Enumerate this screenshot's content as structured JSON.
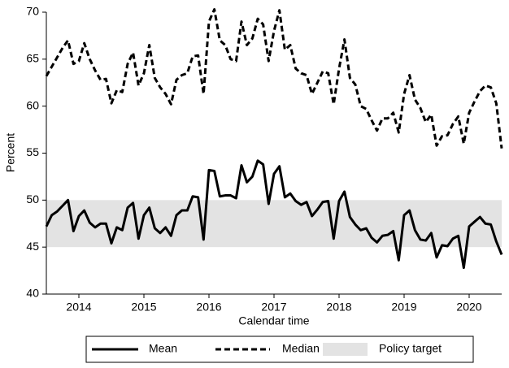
{
  "chart_data": {
    "type": "line",
    "xlabel": "Calendar time",
    "ylabel": "Percent",
    "xlim": [
      2013.5,
      2020.5
    ],
    "xticks": [
      2014,
      2015,
      2016,
      2017,
      2018,
      2019,
      2020
    ],
    "ylim": [
      40,
      70
    ],
    "yticks": [
      40,
      45,
      50,
      55,
      60,
      65,
      70
    ],
    "legend": "bottom",
    "band": {
      "name": "Policy target",
      "range": [
        45,
        50
      ],
      "color": "#e3e3e3"
    },
    "x": [
      2013.5,
      2013.583,
      2013.667,
      2013.75,
      2013.833,
      2013.917,
      2014,
      2014.083,
      2014.167,
      2014.25,
      2014.333,
      2014.417,
      2014.5,
      2014.583,
      2014.667,
      2014.75,
      2014.833,
      2014.917,
      2015,
      2015.083,
      2015.167,
      2015.25,
      2015.333,
      2015.417,
      2015.5,
      2015.583,
      2015.667,
      2015.75,
      2015.833,
      2015.917,
      2016,
      2016.083,
      2016.167,
      2016.25,
      2016.333,
      2016.417,
      2016.5,
      2016.583,
      2016.667,
      2016.75,
      2016.833,
      2016.917,
      2017,
      2017.083,
      2017.167,
      2017.25,
      2017.333,
      2017.417,
      2017.5,
      2017.583,
      2017.667,
      2017.75,
      2017.833,
      2017.917,
      2018,
      2018.083,
      2018.167,
      2018.25,
      2018.333,
      2018.417,
      2018.5,
      2018.583,
      2018.667,
      2018.75,
      2018.833,
      2018.917,
      2019,
      2019.083,
      2019.167,
      2019.25,
      2019.333,
      2019.417,
      2019.5,
      2019.583,
      2019.667,
      2019.75,
      2019.833,
      2019.917,
      2020,
      2020.083,
      2020.167,
      2020.25,
      2020.333,
      2020.417,
      2020.5
    ],
    "series": [
      {
        "name": "Mean",
        "color": "#000000",
        "style": "solid",
        "values": [
          47.2,
          48.4,
          48.8,
          49.4,
          50.0,
          46.7,
          48.3,
          48.9,
          47.6,
          47.1,
          47.5,
          47.5,
          45.4,
          47.1,
          46.8,
          49.2,
          49.7,
          45.9,
          48.4,
          49.2,
          47.0,
          46.5,
          47.1,
          46.2,
          48.4,
          48.9,
          48.9,
          50.4,
          50.3,
          45.8,
          53.2,
          53.1,
          50.4,
          50.5,
          50.5,
          50.2,
          53.7,
          51.9,
          52.5,
          54.2,
          53.8,
          49.6,
          52.8,
          53.6,
          50.3,
          50.7,
          49.9,
          49.5,
          49.8,
          48.3,
          49.0,
          49.8,
          49.9,
          45.9,
          49.9,
          50.9,
          48.2,
          47.4,
          46.8,
          47.0,
          46.0,
          45.5,
          46.2,
          46.3,
          46.7,
          43.6,
          48.4,
          48.9,
          46.8,
          45.8,
          45.7,
          46.5,
          43.9,
          45.2,
          45.1,
          45.9,
          46.2,
          42.8,
          47.2,
          47.7,
          48.2,
          47.5,
          47.4,
          45.6,
          44.2
        ]
      },
      {
        "name": "Median",
        "color": "#000000",
        "style": "dashed",
        "values": [
          63.2,
          64.2,
          65.2,
          66.2,
          67.0,
          64.5,
          64.8,
          66.7,
          65.0,
          63.8,
          62.8,
          62.9,
          60.3,
          61.7,
          61.5,
          64.5,
          65.7,
          62.2,
          63.5,
          66.5,
          63.0,
          62.0,
          61.3,
          60.2,
          62.8,
          63.3,
          63.5,
          65.3,
          65.4,
          61.3,
          69.0,
          70.3,
          67.0,
          66.5,
          65.0,
          64.8,
          69.0,
          66.5,
          67.2,
          69.3,
          68.7,
          64.8,
          68.0,
          70.2,
          66.0,
          66.5,
          64.0,
          63.5,
          63.3,
          61.3,
          62.5,
          63.7,
          63.5,
          60.2,
          64.0,
          67.1,
          63.0,
          62.3,
          60.0,
          59.7,
          58.5,
          57.4,
          58.7,
          58.7,
          59.3,
          57.2,
          61.3,
          63.3,
          60.7,
          59.8,
          58.3,
          59.1,
          55.8,
          56.8,
          56.9,
          58.1,
          58.9,
          56.0,
          59.3,
          60.5,
          61.6,
          62.2,
          62.0,
          60.3,
          55.5
        ]
      }
    ]
  }
}
